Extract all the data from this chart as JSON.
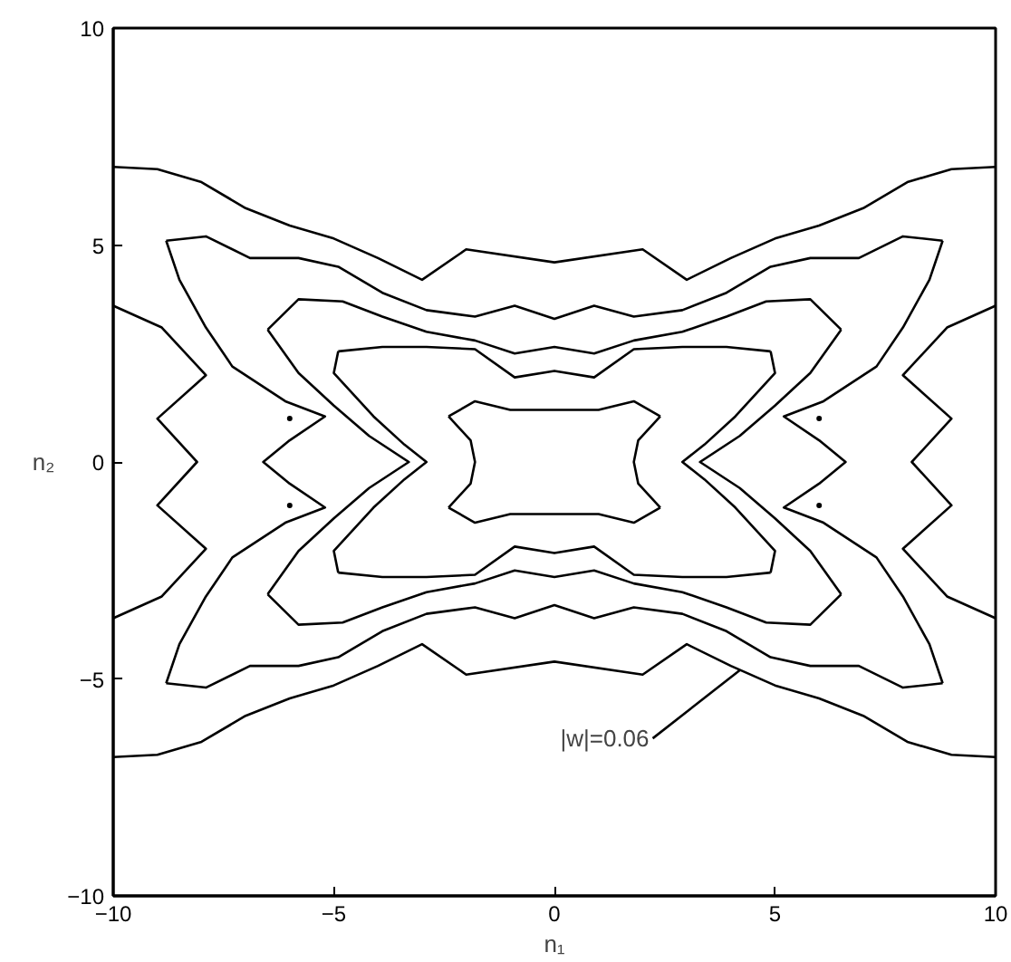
{
  "chart_data": {
    "type": "line",
    "xlabel": "n₁",
    "ylabel": "n₂",
    "xlim": [
      -10,
      10
    ],
    "ylim": [
      -10,
      10
    ],
    "xticks": [
      -10,
      -5,
      0,
      5,
      10
    ],
    "yticks": [
      -10,
      -5,
      0,
      5,
      10
    ],
    "annotations": [
      {
        "text": "|w|=0.06",
        "x": 4.2,
        "y": -4.8
      }
    ],
    "series": [
      {
        "color": "#000000",
        "x": [
          -10,
          -9,
          -8,
          -7,
          -6,
          -5,
          -4,
          -3,
          -2,
          0,
          2,
          3,
          4,
          5,
          6,
          7,
          8,
          9,
          10
        ],
        "values": [
          6.8,
          6.75,
          6.45,
          5.85,
          5.45,
          5.15,
          4.7,
          4.2,
          4.9,
          4.6,
          4.9,
          4.2,
          4.7,
          5.15,
          5.45,
          5.85,
          6.45,
          6.75,
          6.8
        ]
      },
      {
        "color": "#000000",
        "x": [
          -10,
          -9,
          -8,
          -7,
          -6,
          -5,
          -4,
          -3,
          -2,
          0,
          2,
          3,
          4,
          5,
          6,
          7,
          8,
          9,
          10
        ],
        "values": [
          -6.8,
          -6.75,
          -6.45,
          -5.85,
          -5.45,
          -5.15,
          -4.7,
          -4.2,
          -4.9,
          -4.6,
          -4.9,
          -4.2,
          -4.7,
          -5.15,
          -5.45,
          -5.85,
          -6.45,
          -6.75,
          -6.8
        ]
      },
      {
        "color": "#000000",
        "x": [
          -10,
          -8.9,
          -7.9,
          -9.0,
          -8.1,
          -9.0,
          -7.9,
          -8.9,
          -10
        ],
        "values": [
          3.6,
          3.1,
          2.0,
          1.0,
          0,
          -1.0,
          -2.0,
          -3.1,
          -3.6
        ]
      },
      {
        "color": "#000000",
        "x": [
          10,
          8.9,
          7.9,
          9.0,
          8.1,
          9.0,
          7.9,
          8.9,
          10
        ],
        "values": [
          3.6,
          3.1,
          2.0,
          1.0,
          0,
          -1.0,
          -2.0,
          -3.1,
          -3.6
        ]
      },
      {
        "color": "#000000",
        "x": [
          -8.8,
          -7.9,
          -6.9,
          -5.8,
          -4.9,
          -3.9,
          -2.9,
          -1.8,
          -0.9,
          0,
          0.9,
          1.8,
          2.9,
          3.9,
          4.9,
          5.8,
          6.9,
          7.9,
          8.8
        ],
        "values": [
          5.1,
          5.2,
          4.7,
          4.7,
          4.5,
          3.9,
          3.5,
          3.35,
          3.6,
          3.3,
          3.6,
          3.35,
          3.5,
          3.9,
          4.5,
          4.7,
          4.7,
          5.2,
          5.1
        ]
      },
      {
        "color": "#000000",
        "x": [
          -8.8,
          -7.9,
          -6.9,
          -5.8,
          -4.9,
          -3.9,
          -2.9,
          -1.8,
          -0.9,
          0,
          0.9,
          1.8,
          2.9,
          3.9,
          4.9,
          5.8,
          6.9,
          7.9,
          8.8
        ],
        "values": [
          -5.1,
          -5.2,
          -4.7,
          -4.7,
          -4.5,
          -3.9,
          -3.5,
          -3.35,
          -3.6,
          -3.3,
          -3.6,
          -3.35,
          -3.5,
          -3.9,
          -4.5,
          -4.7,
          -4.7,
          -5.2,
          -5.1
        ]
      },
      {
        "color": "#000000",
        "x": [
          8.8,
          8.5,
          7.9,
          7.3,
          6.1,
          5.2,
          6.0,
          6.6,
          6.0,
          5.2,
          6.1,
          7.3,
          7.9,
          8.5,
          8.8
        ],
        "values": [
          5.1,
          4.2,
          3.1,
          2.2,
          1.4,
          1.05,
          0.5,
          0,
          -0.5,
          -1.05,
          -1.4,
          -2.2,
          -3.1,
          -4.2,
          -5.1
        ]
      },
      {
        "color": "#000000",
        "x": [
          -8.8,
          -8.5,
          -7.9,
          -7.3,
          -6.1,
          -5.2,
          -6.0,
          -6.6,
          -6.0,
          -5.2,
          -6.1,
          -7.3,
          -7.9,
          -8.5,
          -8.8
        ],
        "values": [
          5.1,
          4.2,
          3.1,
          2.2,
          1.4,
          1.05,
          0.5,
          0,
          -0.5,
          -1.05,
          -1.4,
          -2.2,
          -3.1,
          -4.2,
          -5.1
        ]
      },
      {
        "color": "#000000",
        "x": [
          -6.5,
          -5.8,
          -4.8,
          -3.9,
          -2.9,
          -1.8,
          -0.9,
          0,
          0.9,
          1.8,
          2.9,
          3.9,
          4.8,
          5.8,
          6.5
        ],
        "values": [
          3.05,
          3.75,
          3.7,
          3.35,
          3.0,
          2.8,
          2.5,
          2.65,
          2.5,
          2.8,
          3.0,
          3.35,
          3.7,
          3.75,
          3.05
        ]
      },
      {
        "color": "#000000",
        "x": [
          -6.5,
          -5.8,
          -4.8,
          -3.9,
          -2.9,
          -1.8,
          -0.9,
          0,
          0.9,
          1.8,
          2.9,
          3.9,
          4.8,
          5.8,
          6.5
        ],
        "values": [
          -3.05,
          -3.75,
          -3.7,
          -3.35,
          -3.0,
          -2.8,
          -2.5,
          -2.65,
          -2.5,
          -2.8,
          -3.0,
          -3.35,
          -3.7,
          -3.75,
          -3.05
        ]
      },
      {
        "color": "#000000",
        "x": [
          6.5,
          5.8,
          5.0,
          4.2,
          3.3,
          4.2,
          5.0,
          5.8,
          6.5
        ],
        "values": [
          3.05,
          2.05,
          1.3,
          0.6,
          0,
          -0.6,
          -1.3,
          -2.05,
          -3.05
        ]
      },
      {
        "color": "#000000",
        "x": [
          -6.5,
          -5.8,
          -5.0,
          -4.2,
          -3.3,
          -4.2,
          -5.0,
          -5.8,
          -6.5
        ],
        "values": [
          3.05,
          2.05,
          1.3,
          0.6,
          0,
          -0.6,
          -1.3,
          -2.05,
          -3.05
        ]
      },
      {
        "color": "#000000",
        "x": [
          -4.9,
          -3.9,
          -2.9,
          -1.8,
          -0.9,
          0,
          0.9,
          1.8,
          2.9,
          3.9,
          4.9
        ],
        "values": [
          2.55,
          2.65,
          2.65,
          2.6,
          1.95,
          2.1,
          1.95,
          2.6,
          2.65,
          2.65,
          2.55
        ]
      },
      {
        "color": "#000000",
        "x": [
          -4.9,
          -3.9,
          -2.9,
          -1.8,
          -0.9,
          0,
          0.9,
          1.8,
          2.9,
          3.9,
          4.9
        ],
        "values": [
          -2.55,
          -2.65,
          -2.65,
          -2.6,
          -1.95,
          -2.1,
          -1.95,
          -2.6,
          -2.65,
          -2.65,
          -2.55
        ]
      },
      {
        "color": "#000000",
        "x": [
          4.9,
          5.0,
          4.1,
          3.4,
          2.9,
          3.4,
          4.1,
          5.0,
          4.9
        ],
        "values": [
          2.55,
          2.05,
          1.05,
          0.4,
          0,
          -0.4,
          -1.05,
          -2.05,
          -2.55
        ]
      },
      {
        "color": "#000000",
        "x": [
          -4.9,
          -5.0,
          -4.1,
          -3.4,
          -2.9,
          -3.4,
          -4.1,
          -5.0,
          -4.9
        ],
        "values": [
          2.55,
          2.05,
          1.05,
          0.4,
          0,
          -0.4,
          -1.05,
          -2.05,
          -2.55
        ]
      },
      {
        "color": "#000000",
        "x": [
          -2.4,
          -1.8,
          -1.0,
          0,
          1.0,
          1.8,
          2.4
        ],
        "values": [
          1.05,
          1.4,
          1.2,
          1.2,
          1.2,
          1.4,
          1.05
        ]
      },
      {
        "color": "#000000",
        "x": [
          -2.4,
          -1.8,
          -1.0,
          0,
          1.0,
          1.8,
          2.4
        ],
        "values": [
          -1.05,
          -1.4,
          -1.2,
          -1.2,
          -1.2,
          -1.4,
          -1.05
        ]
      },
      {
        "color": "#000000",
        "x": [
          2.4,
          1.9,
          1.8,
          1.9,
          2.4
        ],
        "values": [
          1.05,
          0.5,
          0,
          -0.5,
          -1.05
        ]
      },
      {
        "color": "#000000",
        "x": [
          -2.4,
          -1.9,
          -1.8,
          -1.9,
          -2.4
        ],
        "values": [
          1.05,
          0.5,
          0,
          -0.5,
          -1.05
        ]
      },
      {
        "type": "scatter",
        "color": "#000000",
        "x": [
          -6,
          6,
          6,
          -6
        ],
        "values": [
          1,
          1,
          -1,
          -1
        ]
      }
    ]
  }
}
